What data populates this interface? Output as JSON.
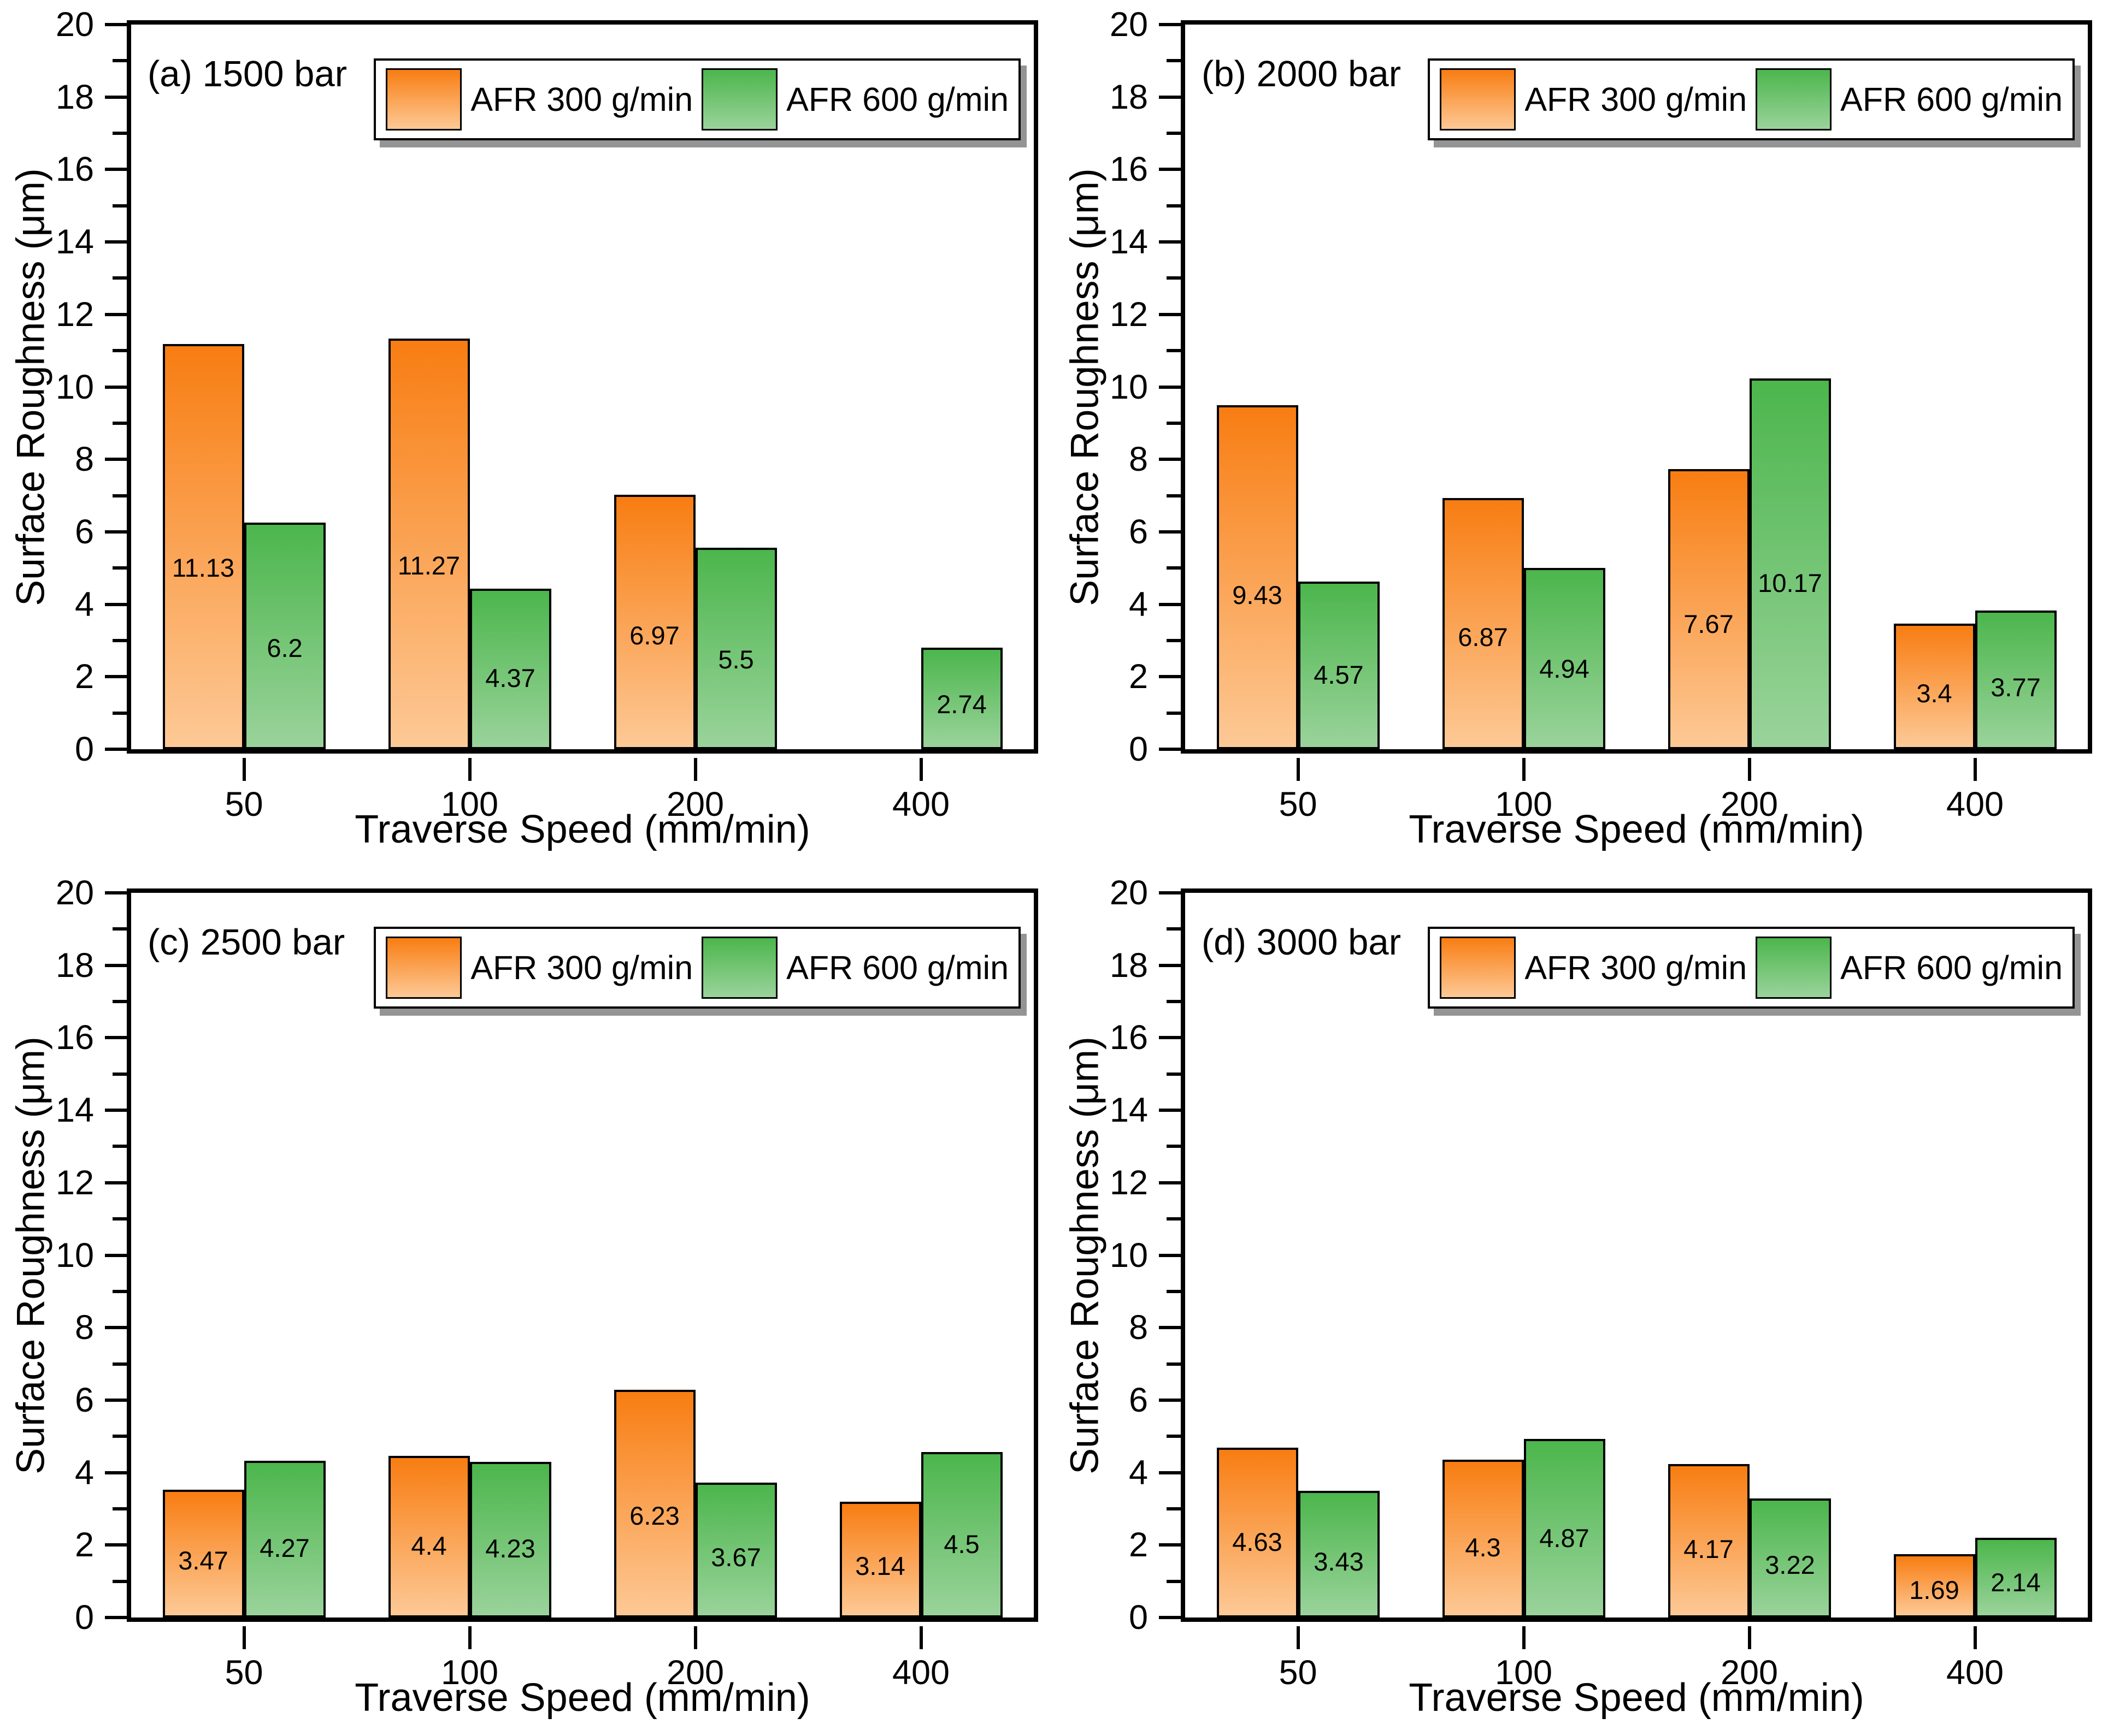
{
  "figure": {
    "background": "#ffffff",
    "axis_color": "#000000",
    "series_styles": [
      {
        "name": "AFR 300 g/min",
        "color_top": "#F87D12",
        "color_bottom": "#FDC996"
      },
      {
        "name": "AFR 600 g/min",
        "color_top": "#4CB64C",
        "color_bottom": "#9AD39B"
      }
    ]
  },
  "axis": {
    "yticks": [
      0,
      2,
      4,
      6,
      8,
      10,
      12,
      14,
      16,
      18,
      20
    ],
    "yminor": [
      1,
      3,
      5,
      7,
      9,
      11,
      13,
      15,
      17,
      19
    ]
  },
  "chart_data": [
    {
      "type": "bar",
      "panel_label": "(a) 1500 bar",
      "title": "",
      "xlabel": "Traverse Speed (mm/min)",
      "ylabel": "Surface Roughness (μm)",
      "ylim": [
        0,
        20
      ],
      "ytick_step": 2,
      "grid": false,
      "legend_position": "top-right-inside",
      "categories": [
        "50",
        "100",
        "200",
        "400"
      ],
      "series": [
        {
          "name": "AFR 300 g/min",
          "values": [
            11.13,
            11.27,
            6.97,
            null
          ]
        },
        {
          "name": "AFR 600 g/min",
          "values": [
            6.2,
            4.37,
            5.5,
            2.74
          ]
        }
      ]
    },
    {
      "type": "bar",
      "panel_label": "(b) 2000 bar",
      "title": "",
      "xlabel": "Traverse Speed (mm/min)",
      "ylabel": "Surface Roughness (μm)",
      "ylim": [
        0,
        20
      ],
      "ytick_step": 2,
      "grid": false,
      "legend_position": "top-right-inside",
      "categories": [
        "50",
        "100",
        "200",
        "400"
      ],
      "series": [
        {
          "name": "AFR 300 g/min",
          "values": [
            9.43,
            6.87,
            7.67,
            3.4
          ]
        },
        {
          "name": "AFR 600 g/min",
          "values": [
            4.57,
            4.94,
            10.17,
            3.77
          ]
        }
      ]
    },
    {
      "type": "bar",
      "panel_label": "(c) 2500 bar",
      "title": "",
      "xlabel": "Traverse Speed (mm/min)",
      "ylabel": "Surface Roughness (μm)",
      "ylim": [
        0,
        20
      ],
      "ytick_step": 2,
      "grid": false,
      "legend_position": "top-right-inside",
      "categories": [
        "50",
        "100",
        "200",
        "400"
      ],
      "series": [
        {
          "name": "AFR 300 g/min",
          "values": [
            3.47,
            4.4,
            6.23,
            3.14
          ]
        },
        {
          "name": "AFR 600 g/min",
          "values": [
            4.27,
            4.23,
            3.67,
            4.5
          ]
        }
      ]
    },
    {
      "type": "bar",
      "panel_label": "(d) 3000 bar",
      "title": "",
      "xlabel": "Traverse Speed (mm/min)",
      "ylabel": "Surface Roughness (μm)",
      "ylim": [
        0,
        20
      ],
      "ytick_step": 2,
      "grid": false,
      "legend_position": "top-right-inside",
      "categories": [
        "50",
        "100",
        "200",
        "400"
      ],
      "series": [
        {
          "name": "AFR 300 g/min",
          "values": [
            4.63,
            4.3,
            4.17,
            1.69
          ]
        },
        {
          "name": "AFR 600 g/min",
          "values": [
            3.43,
            4.87,
            3.22,
            2.14
          ]
        }
      ]
    }
  ]
}
